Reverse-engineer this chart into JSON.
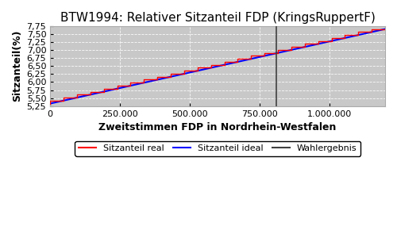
{
  "title": "BTW1994: Relativer Sitzanteil FDP (KringsRuppertF)",
  "xlabel": "Zweitstimmen FDP in Nordrhein-Westfalen",
  "ylabel": "Sitzanteil(%)",
  "xlim": [
    0,
    1200000
  ],
  "ylim": [
    5.25,
    7.75
  ],
  "yticks": [
    5.25,
    5.5,
    5.75,
    6.0,
    6.25,
    6.5,
    6.75,
    7.0,
    7.25,
    7.5,
    7.75
  ],
  "ytick_labels": [
    "5,25",
    "5,50",
    "5,75",
    "6,00",
    "6,25",
    "6,50",
    "6,75",
    "7,00",
    "7,25",
    "7,50",
    "7,75"
  ],
  "xticks": [
    0,
    250000,
    500000,
    750000,
    1000000
  ],
  "xtick_labels": [
    "0",
    "250.000",
    "500.000",
    "750.000",
    "1.000.000"
  ],
  "wahlergebnis_x": 810000,
  "n_steps": 25,
  "x_start": 0,
  "x_end": 1200000,
  "y_start": 5.33,
  "y_end": 7.65,
  "background_color": "#c8c8c8",
  "figure_color": "#ffffff",
  "line_real_color": "#ff0000",
  "line_ideal_color": "#0000ff",
  "wahlergebnis_color": "#404040",
  "legend_labels": [
    "Sitzanteil real",
    "Sitzanteil ideal",
    "Wahlergebnis"
  ],
  "title_fontsize": 11,
  "axis_label_fontsize": 9,
  "tick_fontsize": 8,
  "legend_fontsize": 8
}
